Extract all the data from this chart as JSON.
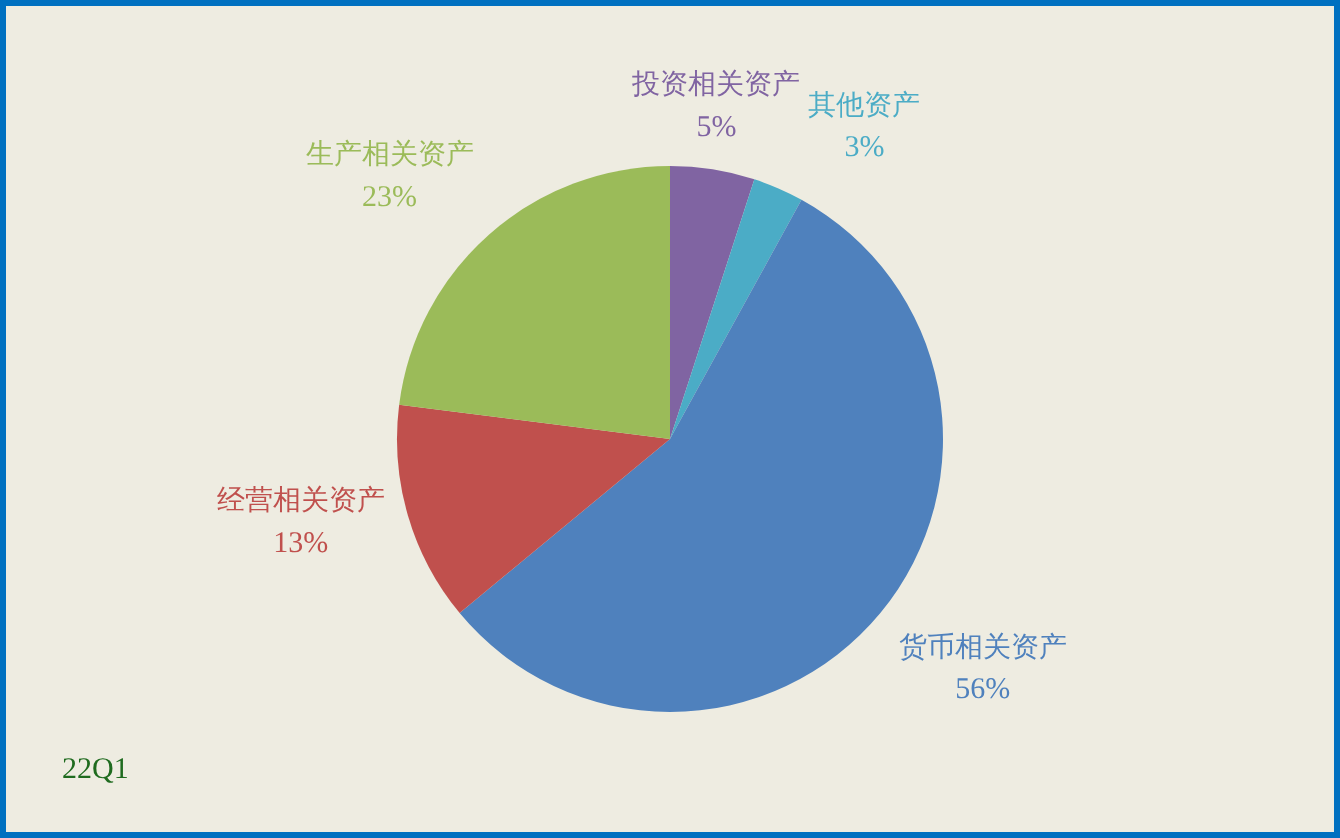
{
  "chart_data": {
    "type": "pie",
    "categories": [
      "投资相关资产",
      "其他资产",
      "货币相关资产",
      "经营相关资产",
      "生产相关资产"
    ],
    "values": [
      5,
      3,
      56,
      13,
      23
    ],
    "colors": [
      "#8064a2",
      "#4bacc6",
      "#4f81bd",
      "#c0504d",
      "#9bbb59"
    ],
    "value_labels": [
      "5%",
      "3%",
      "56%",
      "13%",
      "23%"
    ],
    "annotations": [
      "22Q1"
    ]
  }
}
